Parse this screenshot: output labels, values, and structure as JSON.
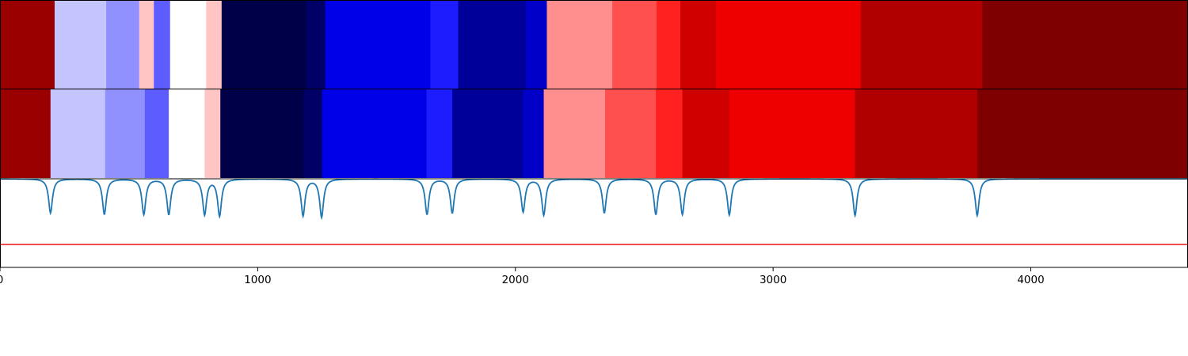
{
  "chart_data": {
    "type": "heatmap",
    "title": "",
    "xlabel": "",
    "ylabel": "",
    "xlim": [
      0,
      4610
    ],
    "x_ticks": [
      0,
      1000,
      2000,
      3000,
      4000
    ],
    "x_tick_labels": [
      "0",
      "1000",
      "2000",
      "3000",
      "4000"
    ],
    "grid": false,
    "legend": "none",
    "rows": [
      {
        "name": "",
        "segments": [
          {
            "start": 0,
            "end": 212,
            "color": "#9a0000"
          },
          {
            "start": 212,
            "end": 412,
            "color": "#c4c4ff"
          },
          {
            "start": 412,
            "end": 540,
            "color": "#9090ff"
          },
          {
            "start": 540,
            "end": 597,
            "color": "#ffc4c4"
          },
          {
            "start": 597,
            "end": 660,
            "color": "#5c5cff"
          },
          {
            "start": 660,
            "end": 800,
            "color": "#ffffff"
          },
          {
            "start": 800,
            "end": 860,
            "color": "#ffc4c4"
          },
          {
            "start": 860,
            "end": 1188,
            "color": "#000048"
          },
          {
            "start": 1188,
            "end": 1262,
            "color": "#000066"
          },
          {
            "start": 1262,
            "end": 1670,
            "color": "#0000e8"
          },
          {
            "start": 1670,
            "end": 1778,
            "color": "#1c1cff"
          },
          {
            "start": 1778,
            "end": 2040,
            "color": "#000098"
          },
          {
            "start": 2040,
            "end": 2122,
            "color": "#0000c8"
          },
          {
            "start": 2122,
            "end": 2376,
            "color": "#ff8e8e"
          },
          {
            "start": 2376,
            "end": 2548,
            "color": "#ff5050"
          },
          {
            "start": 2548,
            "end": 2640,
            "color": "#ff2020"
          },
          {
            "start": 2640,
            "end": 2778,
            "color": "#ce0000"
          },
          {
            "start": 2778,
            "end": 3340,
            "color": "#ee0000"
          },
          {
            "start": 3340,
            "end": 3812,
            "color": "#b00000"
          },
          {
            "start": 3812,
            "end": 4610,
            "color": "#7e0000"
          }
        ]
      },
      {
        "name": "",
        "segments": [
          {
            "start": 0,
            "end": 196,
            "color": "#9a0000"
          },
          {
            "start": 196,
            "end": 408,
            "color": "#c4c4ff"
          },
          {
            "start": 408,
            "end": 562,
            "color": "#9090ff"
          },
          {
            "start": 562,
            "end": 655,
            "color": "#5c5cff"
          },
          {
            "start": 655,
            "end": 794,
            "color": "#ffffff"
          },
          {
            "start": 794,
            "end": 855,
            "color": "#ffc4c4"
          },
          {
            "start": 855,
            "end": 1178,
            "color": "#000048"
          },
          {
            "start": 1178,
            "end": 1250,
            "color": "#000066"
          },
          {
            "start": 1250,
            "end": 1655,
            "color": "#0000e8"
          },
          {
            "start": 1655,
            "end": 1755,
            "color": "#1c1cff"
          },
          {
            "start": 1755,
            "end": 2030,
            "color": "#000098"
          },
          {
            "start": 2030,
            "end": 2110,
            "color": "#0000c8"
          },
          {
            "start": 2110,
            "end": 2348,
            "color": "#ff8e8e"
          },
          {
            "start": 2348,
            "end": 2545,
            "color": "#ff5050"
          },
          {
            "start": 2545,
            "end": 2648,
            "color": "#ff2020"
          },
          {
            "start": 2648,
            "end": 2830,
            "color": "#ce0000"
          },
          {
            "start": 2830,
            "end": 3318,
            "color": "#ee0000"
          },
          {
            "start": 3318,
            "end": 3792,
            "color": "#b00000"
          },
          {
            "start": 3792,
            "end": 4610,
            "color": "#7e0000"
          }
        ]
      }
    ],
    "series": [
      {
        "name": "",
        "type": "line",
        "color": "#1f77b4",
        "baseline": 1.0,
        "dips": [
          {
            "x": 196,
            "depth": 0.52
          },
          {
            "x": 405,
            "depth": 0.54
          },
          {
            "x": 558,
            "depth": 0.54
          },
          {
            "x": 655,
            "depth": 0.54
          },
          {
            "x": 794,
            "depth": 0.54
          },
          {
            "x": 852,
            "depth": 0.56
          },
          {
            "x": 1176,
            "depth": 0.56
          },
          {
            "x": 1248,
            "depth": 0.58
          },
          {
            "x": 1657,
            "depth": 0.54
          },
          {
            "x": 1755,
            "depth": 0.52
          },
          {
            "x": 2030,
            "depth": 0.5
          },
          {
            "x": 2110,
            "depth": 0.55
          },
          {
            "x": 2345,
            "depth": 0.52
          },
          {
            "x": 2545,
            "depth": 0.54
          },
          {
            "x": 2648,
            "depth": 0.54
          },
          {
            "x": 2830,
            "depth": 0.55
          },
          {
            "x": 3318,
            "depth": 0.56
          },
          {
            "x": 3792,
            "depth": 0.56
          }
        ],
        "dip_width": 9
      },
      {
        "name": "",
        "type": "hline",
        "color": "#ee1111",
        "y": 0.0
      }
    ],
    "line_ylim": [
      -0.35,
      1.0
    ]
  }
}
